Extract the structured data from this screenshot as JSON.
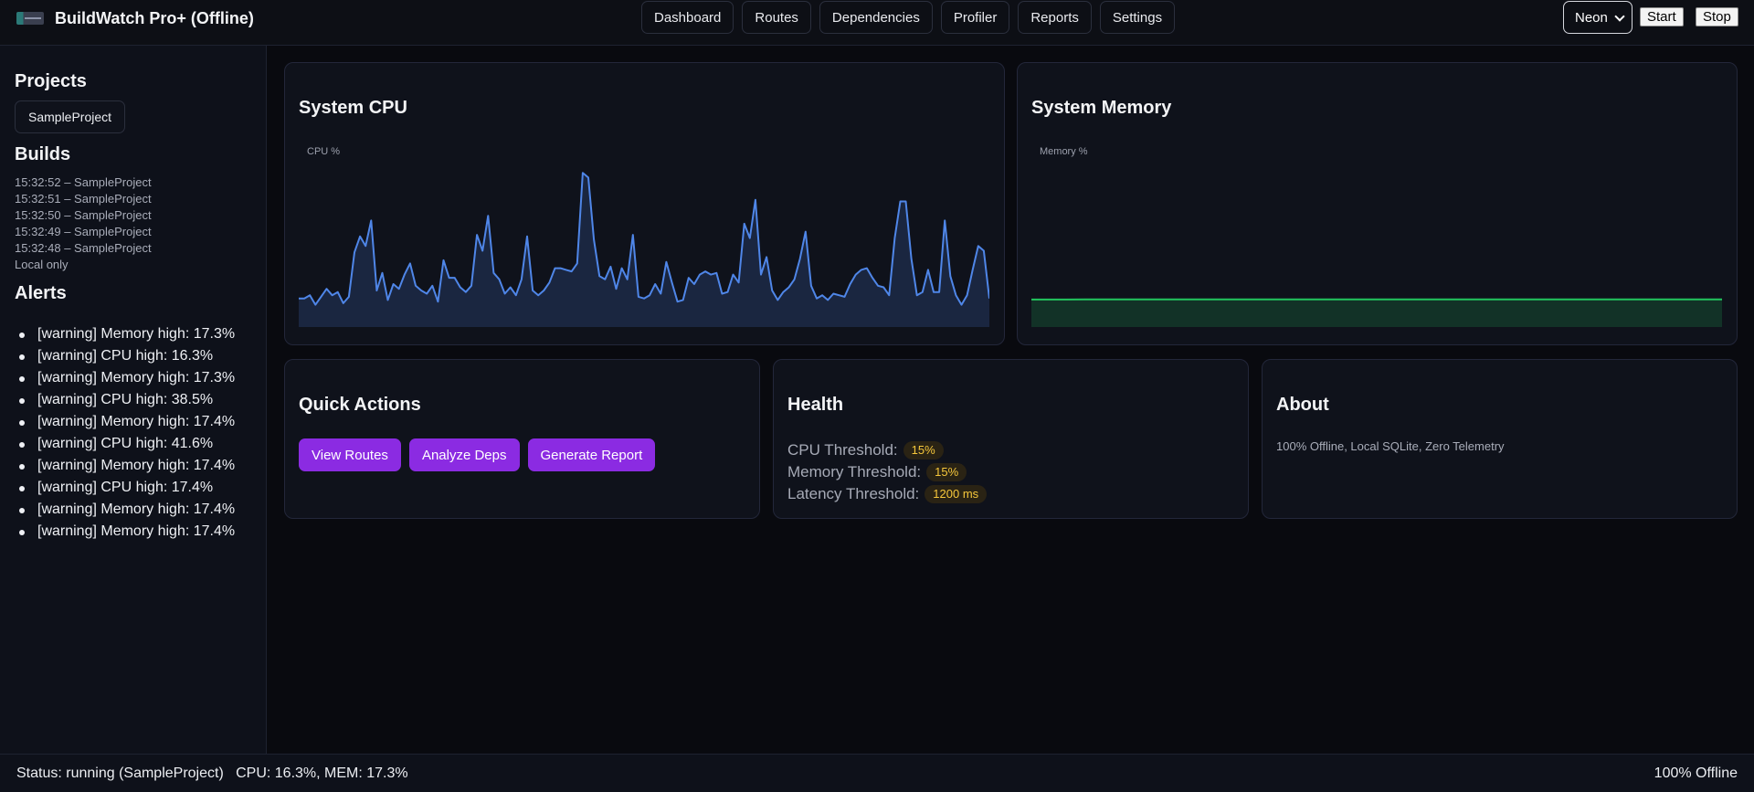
{
  "header": {
    "title": "BuildWatch Pro+ (Offline)",
    "logo_icon": "app-logo-icon",
    "nav": [
      "Dashboard",
      "Routes",
      "Dependencies",
      "Profiler",
      "Reports",
      "Settings"
    ],
    "theme_selected": "Neon",
    "start_label": "Start",
    "stop_label": "Stop"
  },
  "sidebar": {
    "projects_heading": "Projects",
    "project": "SampleProject",
    "builds_heading": "Builds",
    "builds": [
      "15:32:52 – SampleProject",
      "15:32:51 – SampleProject",
      "15:32:50 – SampleProject",
      "15:32:49 – SampleProject",
      "15:32:48 – SampleProject"
    ],
    "local_note": "Local only",
    "alerts_heading": "Alerts",
    "alerts": [
      "[warning] Memory high: 17.3%",
      "[warning] CPU high: 16.3%",
      "[warning] Memory high: 17.3%",
      "[warning] CPU high: 38.5%",
      "[warning] Memory high: 17.4%",
      "[warning] CPU high: 41.6%",
      "[warning] Memory high: 17.4%",
      "[warning] CPU high: 17.4%",
      "[warning] Memory high: 17.4%",
      "[warning] Memory high: 17.4%"
    ]
  },
  "cpu_card": {
    "title": "System CPU",
    "series_label": "CPU %"
  },
  "memory_card": {
    "title": "System Memory",
    "series_label": "Memory %"
  },
  "quick_actions": {
    "title": "Quick Actions",
    "buttons": [
      "View Routes",
      "Analyze Deps",
      "Generate Report"
    ]
  },
  "health": {
    "title": "Health",
    "rows": [
      {
        "label": "CPU Threshold:",
        "value": "15%"
      },
      {
        "label": "Memory Threshold:",
        "value": "15%"
      },
      {
        "label": "Latency Threshold:",
        "value": "1200 ms"
      }
    ]
  },
  "about": {
    "title": "About",
    "text": "100% Offline, Local SQLite, Zero Telemetry"
  },
  "footer": {
    "status": "Status: running (SampleProject)   CPU: 16.3%, MEM: 17.3%",
    "mode": "100% Offline"
  },
  "colors": {
    "accent": "#8b2be2",
    "cpu_line": "#4f86e8",
    "mem_line": "#22c55e",
    "badge_text": "#f6c73b"
  },
  "chart_data": [
    {
      "type": "area",
      "series": [
        {
          "name": "CPU %",
          "values": [
            18,
            18,
            20,
            14,
            19,
            24,
            20,
            22,
            15,
            19,
            47,
            57,
            51,
            67,
            23,
            34,
            17,
            27,
            24,
            33,
            40,
            26,
            23,
            21,
            26,
            16,
            42,
            31,
            31,
            25,
            22,
            26,
            58,
            48,
            70,
            34,
            30,
            21,
            25,
            20,
            30,
            57,
            23,
            20,
            23,
            28,
            37,
            37,
            36,
            35,
            40,
            97,
            94,
            55,
            32,
            30,
            38,
            24,
            37,
            30,
            58,
            19,
            18,
            20,
            27,
            21,
            41,
            28,
            16,
            17,
            31,
            27,
            33,
            35,
            33,
            34,
            21,
            22,
            33,
            28,
            65,
            56,
            80,
            33,
            44,
            23,
            17,
            22,
            25,
            30,
            43,
            60,
            26,
            18,
            20,
            17,
            21,
            20,
            19,
            27,
            33,
            36,
            37,
            31,
            26,
            25,
            20,
            56,
            79,
            79,
            43,
            20,
            22,
            36,
            22,
            22,
            67,
            32,
            20,
            14,
            20,
            36,
            51,
            48,
            18
          ]
        }
      ],
      "ylim": [
        0,
        100
      ]
    },
    {
      "type": "area",
      "series": [
        {
          "name": "Memory %",
          "values": [
            17.3,
            17.3,
            17.3,
            17.4,
            17.4,
            17.4,
            17.4,
            17.4,
            17.4,
            17.4,
            17.4,
            17.4,
            17.4,
            17.4,
            17.4,
            17.4,
            17.4,
            17.4,
            17.4,
            17.4,
            17.4,
            17.4,
            17.4,
            17.4,
            17.4,
            17.4,
            17.4,
            17.4,
            17.4,
            17.4,
            17.4,
            17.4,
            17.4,
            17.4,
            17.4,
            17.4,
            17.4,
            17.4,
            17.4,
            17.4
          ]
        }
      ],
      "ylim": [
        0,
        100
      ]
    }
  ]
}
